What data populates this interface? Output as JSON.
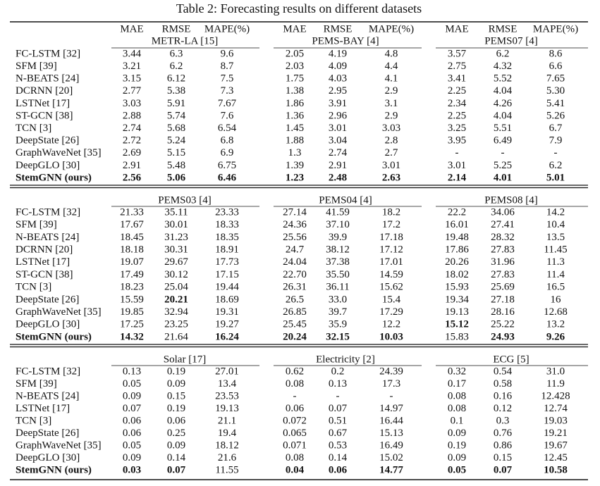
{
  "title": "Table 2: Forecasting results on different datasets",
  "metrics": [
    "MAE",
    "RMSE",
    "MAPE(%)"
  ],
  "sections": [
    {
      "datasets": [
        "METR-LA [15]",
        "PEMS-BAY [4]",
        "PEMS07 [4]"
      ],
      "rows": [
        {
          "model": "FC-LSTM [32]",
          "cells": [
            "3.44",
            "6.3",
            "9.6",
            "2.05",
            "4.19",
            "4.8",
            "3.57",
            "6.2",
            "8.6"
          ]
        },
        {
          "model": "SFM [39]",
          "cells": [
            "3.21",
            "6.2",
            "8.7",
            "2.03",
            "4.09",
            "4.4",
            "2.75",
            "4.32",
            "6.6"
          ]
        },
        {
          "model": "N-BEATS [24]",
          "cells": [
            "3.15",
            "6.12",
            "7.5",
            "1.75",
            "4.03",
            "4.1",
            "3.41",
            "5.52",
            "7.65"
          ]
        },
        {
          "model": "DCRNN [20]",
          "cells": [
            "2.77",
            "5.38",
            "7.3",
            "1.38",
            "2.95",
            "2.9",
            "2.25",
            "4.04",
            "5.30"
          ]
        },
        {
          "model": "LSTNet [17]",
          "cells": [
            "3.03",
            "5.91",
            "7.67",
            "1.86",
            "3.91",
            "3.1",
            "2.34",
            "4.26",
            "5.41"
          ]
        },
        {
          "model": "ST-GCN [38]",
          "cells": [
            "2.88",
            "5.74",
            "7.6",
            "1.36",
            "2.96",
            "2.9",
            "2.25",
            "4.04",
            "5.26"
          ]
        },
        {
          "model": "TCN [3]",
          "cells": [
            "2.74",
            "5.68",
            "6.54",
            "1.45",
            "3.01",
            "3.03",
            "3.25",
            "5.51",
            "6.7"
          ]
        },
        {
          "model": "DeepState [26]",
          "cells": [
            "2.72",
            "5.24",
            "6.8",
            "1.88",
            "3.04",
            "2.8",
            "3.95",
            "6.49",
            "7.9"
          ]
        },
        {
          "model": "GraphWaveNet [35]",
          "cells": [
            "2.69",
            "5.15",
            "6.9",
            "1.3",
            "2.74",
            "2.7",
            "-",
            "-",
            "-"
          ]
        },
        {
          "model": "DeepGLO [30]",
          "cells": [
            "2.91",
            "5.48",
            "6.75",
            "1.39",
            "2.91",
            "3.01",
            "3.01",
            "5.25",
            "6.2"
          ]
        },
        {
          "model": "StemGNN (ours)",
          "model_bold": true,
          "cells": [
            {
              "text": "2.56",
              "bold": true
            },
            {
              "text": "5.06",
              "bold": true
            },
            {
              "text": "6.46",
              "bold": true
            },
            {
              "text": "1.23",
              "bold": true
            },
            {
              "text": "2.48",
              "bold": true
            },
            {
              "text": "2.63",
              "bold": true
            },
            {
              "text": "2.14",
              "bold": true
            },
            {
              "text": "4.01",
              "bold": true
            },
            {
              "text": "5.01",
              "bold": true
            }
          ]
        }
      ]
    },
    {
      "datasets": [
        "PEMS03 [4]",
        "PEMS04 [4]",
        "PEMS08 [4]"
      ],
      "rows": [
        {
          "model": "FC-LSTM [32]",
          "cells": [
            "21.33",
            "35.11",
            "23.33",
            "27.14",
            "41.59",
            "18.2",
            "22.2",
            "34.06",
            "14.2"
          ]
        },
        {
          "model": "SFM [39]",
          "cells": [
            "17.67",
            "30.01",
            "18.33",
            "24.36",
            "37.10",
            "17.2",
            "16.01",
            "27.41",
            "10.4"
          ]
        },
        {
          "model": "N-BEATS [24]",
          "cells": [
            "18.45",
            "31.23",
            "18.35",
            "25.56",
            "39.9",
            "17.18",
            "19.48",
            "28.32",
            "13.5"
          ]
        },
        {
          "model": "DCRNN [20]",
          "cells": [
            "18.18",
            "30.31",
            "18.91",
            "24.7",
            "38.12",
            "17.12",
            "17.86",
            "27.83",
            "11.45"
          ]
        },
        {
          "model": "LSTNet [17]",
          "cells": [
            "19.07",
            "29.67",
            "17.73",
            "24.04",
            "37.38",
            "17.01",
            "20.26",
            "31.96",
            "11.3"
          ]
        },
        {
          "model": "ST-GCN [38]",
          "cells": [
            "17.49",
            "30.12",
            "17.15",
            "22.70",
            "35.50",
            "14.59",
            "18.02",
            "27.83",
            "11.4"
          ]
        },
        {
          "model": "TCN [3]",
          "cells": [
            "18.23",
            "25.04",
            "19.44",
            "26.31",
            "36.11",
            "15.62",
            "15.93",
            "25.69",
            "16.5"
          ]
        },
        {
          "model": "DeepState [26]",
          "cells": [
            "15.59",
            {
              "text": "20.21",
              "bold": true
            },
            "18.69",
            "26.5",
            "33.0",
            "15.4",
            "19.34",
            "27.18",
            "16"
          ]
        },
        {
          "model": "GraphWaveNet [35]",
          "cells": [
            "19.85",
            "32.94",
            "19.31",
            "26.85",
            "39.7",
            "17.29",
            "19.13",
            "28.16",
            "12.68"
          ]
        },
        {
          "model": "DeepGLO [30]",
          "cells": [
            "17.25",
            "23.25",
            "19.27",
            "25.45",
            "35.9",
            "12.2",
            {
              "text": "15.12",
              "bold": true
            },
            "25.22",
            "13.2"
          ]
        },
        {
          "model": "StemGNN (ours)",
          "model_bold": true,
          "cells": [
            {
              "text": "14.32",
              "bold": true
            },
            "21.64",
            {
              "text": "16.24",
              "bold": true
            },
            {
              "text": "20.24",
              "bold": true
            },
            {
              "text": "32.15",
              "bold": true
            },
            {
              "text": "10.03",
              "bold": true
            },
            "15.83",
            {
              "text": "24.93",
              "bold": true
            },
            {
              "text": "9.26",
              "bold": true
            }
          ]
        }
      ]
    },
    {
      "datasets": [
        "Solar [17]",
        "Electricity [2]",
        "ECG [5]"
      ],
      "rows": [
        {
          "model": "FC-LSTM [32]",
          "cells": [
            "0.13",
            "0.19",
            "27.01",
            "0.62",
            "0.2",
            "24.39",
            "0.32",
            "0.54",
            "31.0"
          ]
        },
        {
          "model": "SFM [39]",
          "cells": [
            "0.05",
            "0.09",
            "13.4",
            "0.08",
            "0.13",
            "17.3",
            "0.17",
            "0.58",
            "11.9"
          ]
        },
        {
          "model": "N-BEATS [24]",
          "cells": [
            "0.09",
            "0.15",
            "23.53",
            "-",
            "-",
            "-",
            "0.08",
            "0.16",
            "12.428"
          ]
        },
        {
          "model": "LSTNet [17]",
          "cells": [
            "0.07",
            "0.19",
            "19.13",
            "0.06",
            "0.07",
            "14.97",
            "0.08",
            "0.12",
            "12.74"
          ]
        },
        {
          "model": "TCN [3]",
          "cells": [
            "0.06",
            "0.06",
            "21.1",
            "0.072",
            "0.51",
            "16.44",
            "0.1",
            "0.3",
            "19.03"
          ]
        },
        {
          "model": "DeepState [26]",
          "cells": [
            "0.06",
            "0.25",
            "19.4",
            "0.065",
            "0.67",
            "15.13",
            "0.09",
            "0.76",
            "19.21"
          ]
        },
        {
          "model": "GraphWaveNet [35]",
          "cells": [
            "0.05",
            "0.09",
            "18.12",
            "0.071",
            "0.53",
            "16.49",
            "0.19",
            "0.86",
            "19.67"
          ]
        },
        {
          "model": "DeepGLO [30]",
          "cells": [
            "0.09",
            "0.14",
            "21.6",
            "0.08",
            "0.14",
            "15.02",
            "0.09",
            "0.15",
            "12.45"
          ]
        },
        {
          "model": "StemGNN (ours)",
          "model_bold": true,
          "cells": [
            {
              "text": "0.03",
              "bold": true
            },
            {
              "text": "0.07",
              "bold": true
            },
            "11.55",
            {
              "text": "0.04",
              "bold": true
            },
            {
              "text": "0.06",
              "bold": true
            },
            {
              "text": "14.77",
              "bold": true
            },
            {
              "text": "0.05",
              "bold": true
            },
            {
              "text": "0.07",
              "bold": true
            },
            {
              "text": "10.58",
              "bold": true
            }
          ]
        }
      ]
    }
  ]
}
